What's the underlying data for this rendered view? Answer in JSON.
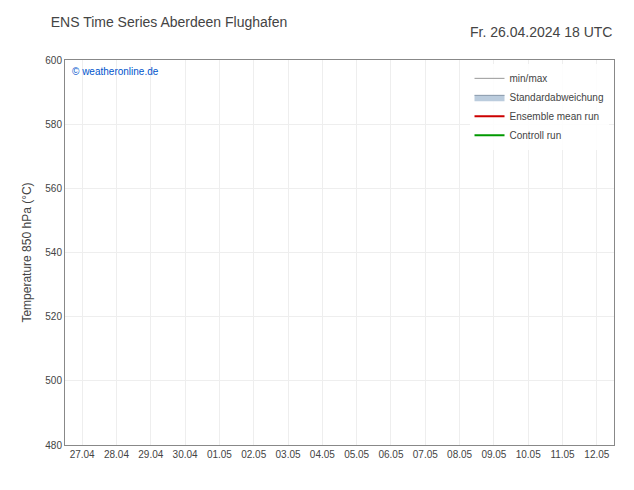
{
  "chart_data": {
    "type": "line",
    "title": "ENS Time Series Aberdeen Flughafen",
    "subtitle": "Fr. 26.04.2024 18 UTC",
    "y_label": "Temperature 850 hPa (°C)",
    "annotations": [
      "© weatheronline.de"
    ],
    "categories": [
      "27.04",
      "28.04",
      "29.04",
      "30.04",
      "01.05",
      "02.05",
      "03.05",
      "04.05",
      "05.05",
      "06.05",
      "07.05",
      "08.05",
      "09.05",
      "10.05",
      "11.05",
      "12.05"
    ],
    "series": [
      {
        "name": "min/max",
        "color": "#999999",
        "type": "errorbar",
        "values": [
          null,
          null,
          null,
          null,
          null,
          null,
          null,
          null,
          null,
          null,
          null,
          null,
          null,
          null,
          null,
          null
        ]
      },
      {
        "name": "Standardabweichung",
        "color": "#bbccdd",
        "type": "band",
        "values": [
          null,
          null,
          null,
          null,
          null,
          null,
          null,
          null,
          null,
          null,
          null,
          null,
          null,
          null,
          null,
          null
        ]
      },
      {
        "name": "Ensemble mean run",
        "color": "#cc0000",
        "type": "line",
        "values": [
          null,
          null,
          null,
          null,
          null,
          null,
          null,
          null,
          null,
          null,
          null,
          null,
          null,
          null,
          null,
          null
        ]
      },
      {
        "name": "Controll run",
        "color": "#009900",
        "type": "line",
        "values": [
          null,
          null,
          null,
          null,
          null,
          null,
          null,
          null,
          null,
          null,
          null,
          null,
          null,
          null,
          null,
          null
        ]
      }
    ],
    "ylim": [
      480,
      600
    ],
    "yticks": [
      480,
      500,
      520,
      540,
      560,
      580,
      600
    ],
    "grid": true,
    "legend": "upper right"
  }
}
